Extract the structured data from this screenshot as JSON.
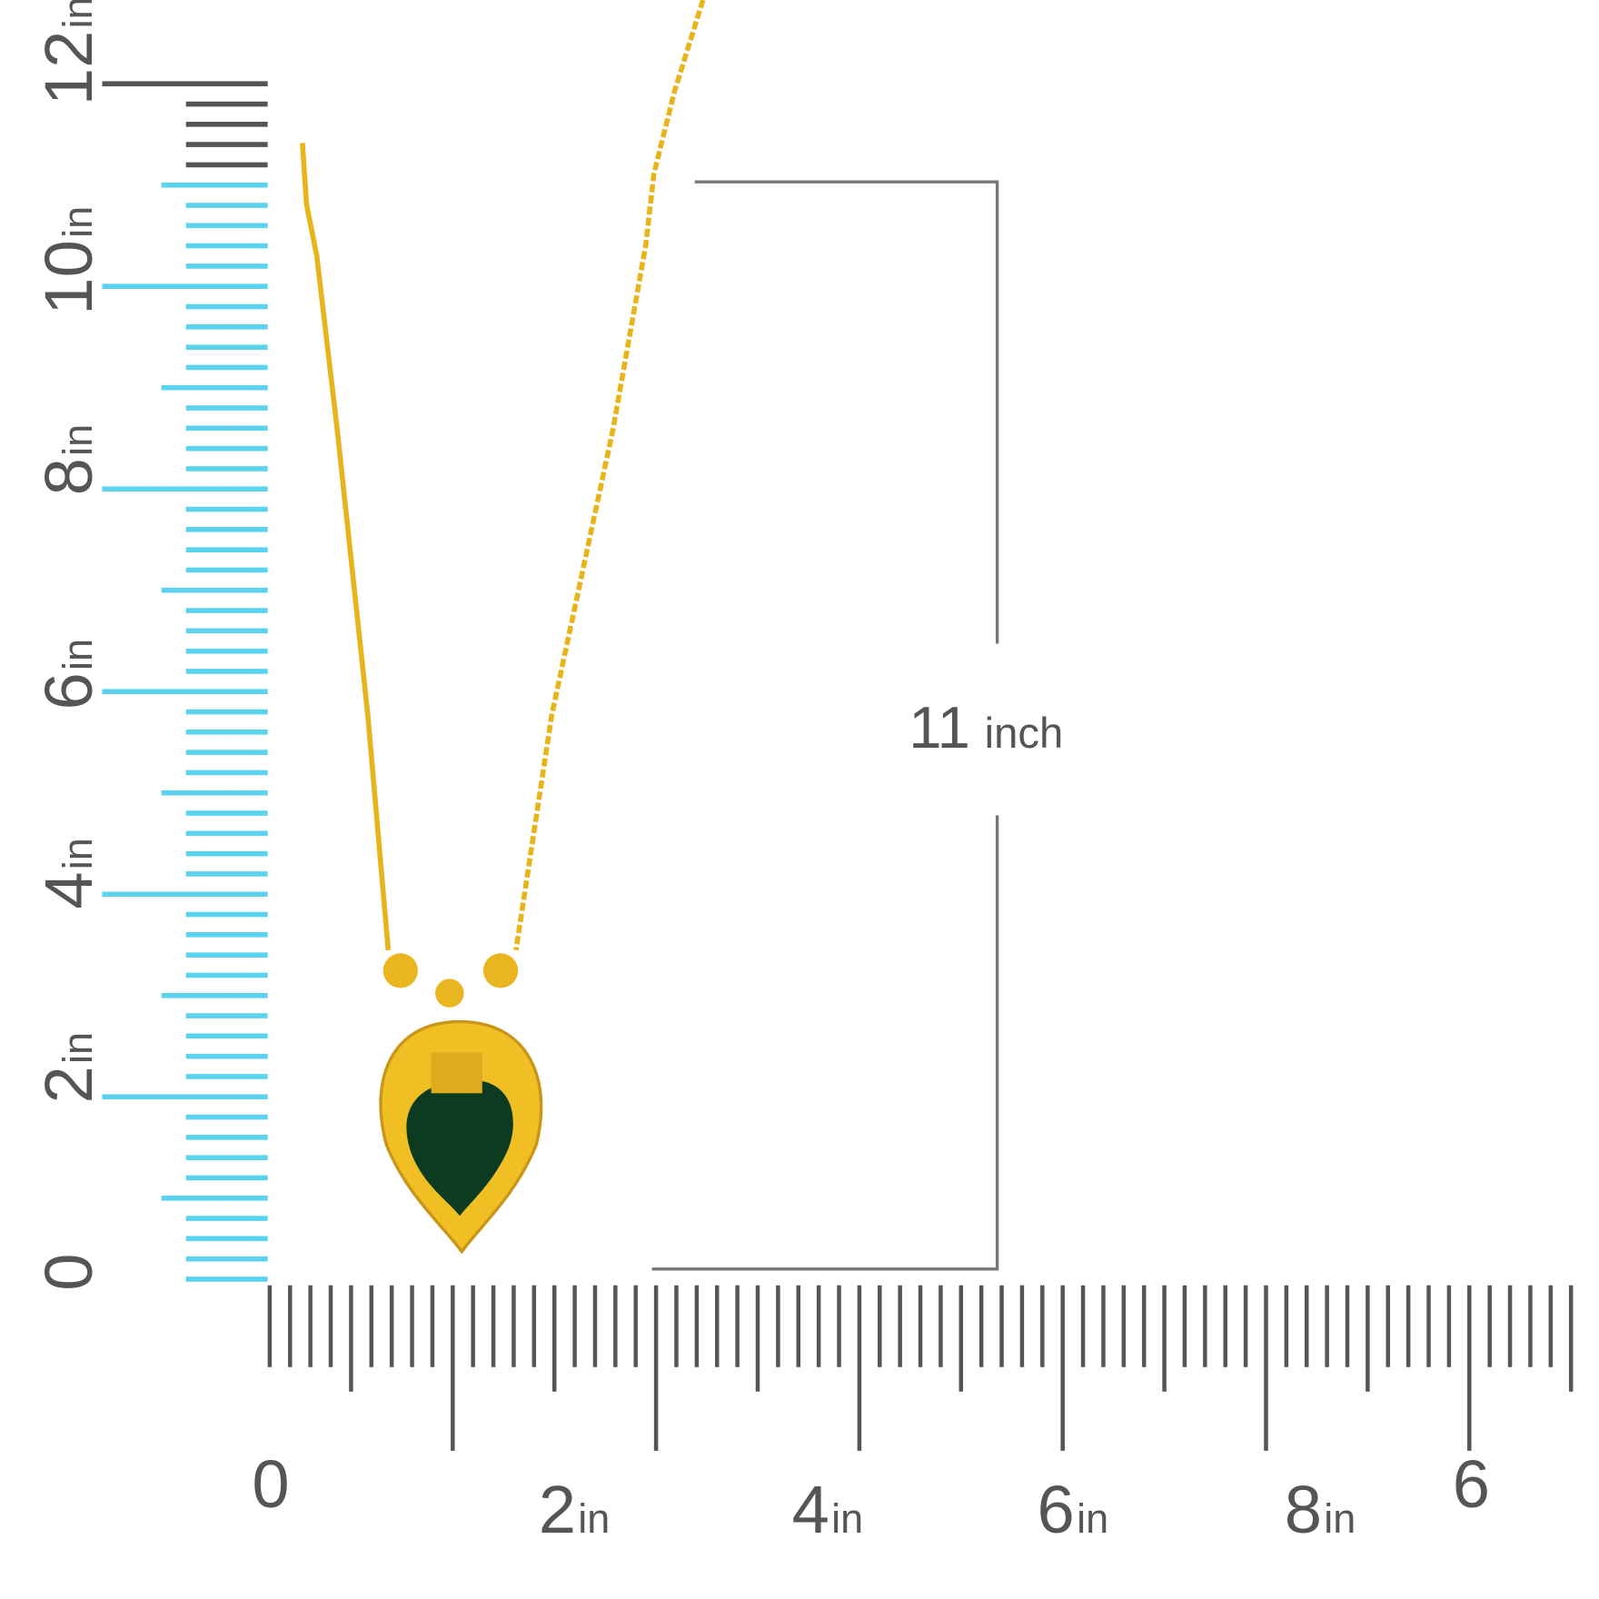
{
  "vertical_ruler": {
    "labels": [
      {
        "num": "12",
        "unit": "in"
      },
      {
        "num": "10",
        "unit": "in"
      },
      {
        "num": "8",
        "unit": "in"
      },
      {
        "num": "6",
        "unit": "in"
      },
      {
        "num": "4",
        "unit": "in"
      },
      {
        "num": "2",
        "unit": "in"
      },
      {
        "num": "0"
      }
    ]
  },
  "horizontal_ruler": {
    "labels": [
      {
        "num": "0"
      },
      {
        "num": "2",
        "unit": "in"
      },
      {
        "num": "4",
        "unit": "in"
      },
      {
        "num": "6",
        "unit": "in"
      },
      {
        "num": "8",
        "unit": "in"
      },
      {
        "num": "6"
      }
    ]
  },
  "dimension": {
    "num": "11",
    "unit": "inch"
  }
}
